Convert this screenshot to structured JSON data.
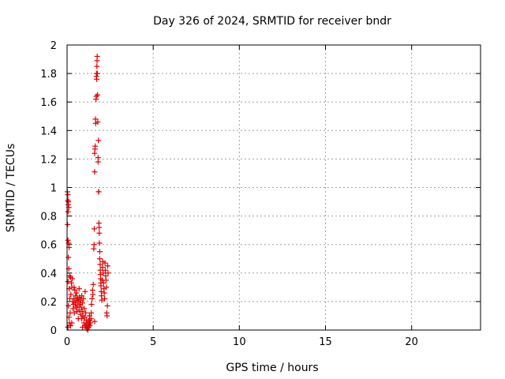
{
  "chart_data": {
    "type": "scatter",
    "title": "Day 326 of 2024, SRMTID for receiver bndr",
    "xlabel": "GPS time / hours",
    "ylabel": "SRMTID / TECUs",
    "xlim": [
      0,
      24
    ],
    "ylim": [
      0,
      2
    ],
    "xticks": [
      0,
      5,
      10,
      15,
      20
    ],
    "yticks": [
      0,
      0.2,
      0.4,
      0.6,
      0.8,
      1,
      1.2,
      1.4,
      1.6,
      1.8,
      2
    ],
    "ytick_labels": [
      "0",
      "0.2",
      "0.4",
      "0.6",
      "0.8",
      "1",
      "1.2",
      "1.4",
      "1.6",
      "1.8",
      "2"
    ],
    "grid": true,
    "marker": "+",
    "color": "#e00000",
    "series": [
      {
        "points": [
          [
            0.02,
            0.97
          ],
          [
            0.04,
            0.95
          ],
          [
            0.05,
            0.91
          ],
          [
            0.07,
            0.88
          ],
          [
            0.08,
            0.9
          ],
          [
            0.1,
            0.86
          ],
          [
            0.06,
            0.83
          ],
          [
            0.03,
            0.74
          ],
          [
            0.05,
            0.63
          ],
          [
            0.09,
            0.61
          ],
          [
            0.12,
            0.58
          ],
          [
            0.08,
            0.51
          ],
          [
            0.1,
            0.43
          ],
          [
            0.14,
            0.38
          ],
          [
            0.06,
            0.34
          ],
          [
            0.12,
            0.29
          ],
          [
            0.16,
            0.22
          ],
          [
            0.08,
            0.17
          ],
          [
            0.11,
            0.09
          ],
          [
            0.14,
            0.05
          ],
          [
            0.05,
            0.02
          ],
          [
            0.2,
            0.03
          ],
          [
            0.18,
            0.12
          ],
          [
            0.22,
            0.25
          ],
          [
            0.25,
            0.33
          ],
          [
            0.28,
            0.3
          ],
          [
            0.3,
            0.36
          ],
          [
            0.32,
            0.2
          ],
          [
            0.35,
            0.15
          ],
          [
            0.38,
            0.18
          ],
          [
            0.4,
            0.22
          ],
          [
            0.42,
            0.12
          ],
          [
            0.45,
            0.28
          ],
          [
            0.48,
            0.19
          ],
          [
            0.5,
            0.24
          ],
          [
            0.52,
            0.16
          ],
          [
            0.55,
            0.21
          ],
          [
            0.58,
            0.13
          ],
          [
            0.6,
            0.17
          ],
          [
            0.62,
            0.22
          ],
          [
            0.65,
            0.08
          ],
          [
            0.68,
            0.2
          ],
          [
            0.7,
            0.14
          ],
          [
            0.72,
            0.23
          ],
          [
            0.75,
            0.18
          ],
          [
            0.78,
            0.11
          ],
          [
            0.8,
            0.21
          ],
          [
            0.82,
            0.16
          ],
          [
            0.85,
            0.24
          ],
          [
            0.88,
            0.13
          ],
          [
            0.9,
            0.19
          ],
          [
            0.92,
            0.1
          ],
          [
            0.95,
            0.22
          ],
          [
            0.98,
            0.05
          ],
          [
            1.0,
            0.15
          ],
          [
            1.02,
            0.09
          ],
          [
            1.05,
            0.27
          ],
          [
            1.08,
            0.12
          ],
          [
            1.1,
            0.03
          ],
          [
            1.12,
            0.07
          ],
          [
            1.15,
            0.01
          ],
          [
            1.18,
            0.04
          ],
          [
            1.2,
            0.0
          ],
          [
            1.22,
            0.06
          ],
          [
            1.25,
            0.02
          ],
          [
            1.28,
            0.04
          ],
          [
            1.3,
            0.07
          ],
          [
            1.32,
            0.03
          ],
          [
            1.35,
            0.05
          ],
          [
            1.38,
            0.08
          ],
          [
            1.4,
            0.12
          ],
          [
            1.42,
            0.18
          ],
          [
            1.45,
            0.22
          ],
          [
            1.48,
            0.28
          ],
          [
            1.5,
            0.25
          ],
          [
            1.52,
            0.32
          ],
          [
            1.55,
            0.57
          ],
          [
            1.57,
            0.6
          ],
          [
            1.58,
            0.71
          ],
          [
            1.6,
            1.11
          ],
          [
            1.6,
            1.24
          ],
          [
            1.62,
            1.27
          ],
          [
            1.63,
            1.29
          ],
          [
            1.65,
            1.48
          ],
          [
            1.66,
            1.45
          ],
          [
            1.68,
            1.62
          ],
          [
            1.7,
            1.64
          ],
          [
            1.7,
            1.78
          ],
          [
            1.71,
            1.8
          ],
          [
            1.72,
            1.76
          ],
          [
            1.73,
            1.85
          ],
          [
            1.74,
            1.89
          ],
          [
            1.75,
            1.92
          ],
          [
            1.76,
            1.8
          ],
          [
            1.77,
            1.65
          ],
          [
            1.78,
            1.46
          ],
          [
            1.8,
            1.21
          ],
          [
            1.8,
            1.18
          ],
          [
            1.82,
            1.33
          ],
          [
            1.83,
            0.97
          ],
          [
            1.84,
            0.97
          ],
          [
            1.85,
            0.75
          ],
          [
            1.86,
            0.72
          ],
          [
            1.87,
            0.68
          ],
          [
            1.88,
            0.61
          ],
          [
            1.9,
            0.55
          ],
          [
            1.9,
            0.5
          ],
          [
            1.92,
            0.46
          ],
          [
            1.93,
            0.42
          ],
          [
            1.94,
            0.39
          ],
          [
            1.95,
            0.36
          ],
          [
            1.96,
            0.33
          ],
          [
            1.97,
            0.31
          ],
          [
            1.98,
            0.27
          ],
          [
            2.0,
            0.24
          ],
          [
            2.02,
            0.21
          ],
          [
            2.04,
            0.35
          ],
          [
            2.06,
            0.44
          ],
          [
            2.08,
            0.48
          ],
          [
            2.1,
            0.4
          ],
          [
            2.12,
            0.33
          ],
          [
            2.14,
            0.29
          ],
          [
            2.16,
            0.26
          ],
          [
            2.18,
            0.22
          ],
          [
            2.2,
            0.47
          ],
          [
            2.22,
            0.42
          ],
          [
            2.24,
            0.38
          ],
          [
            2.26,
            0.35
          ],
          [
            2.28,
            0.3
          ],
          [
            2.3,
            0.12
          ],
          [
            2.32,
            0.1
          ],
          [
            2.34,
            0.17
          ],
          [
            2.36,
            0.45
          ],
          [
            2.38,
            0.4
          ],
          [
            1.3,
            0.1
          ],
          [
            1.6,
            0.06
          ],
          [
            0.2,
            0.37
          ],
          [
            0.27,
            0.05
          ],
          [
            0.9,
            0.02
          ],
          [
            1.05,
            0.03
          ],
          [
            0.4,
            0.3
          ],
          [
            0.55,
            0.26
          ],
          [
            0.7,
            0.29
          ],
          [
            0.85,
            0.08
          ]
        ]
      }
    ]
  }
}
